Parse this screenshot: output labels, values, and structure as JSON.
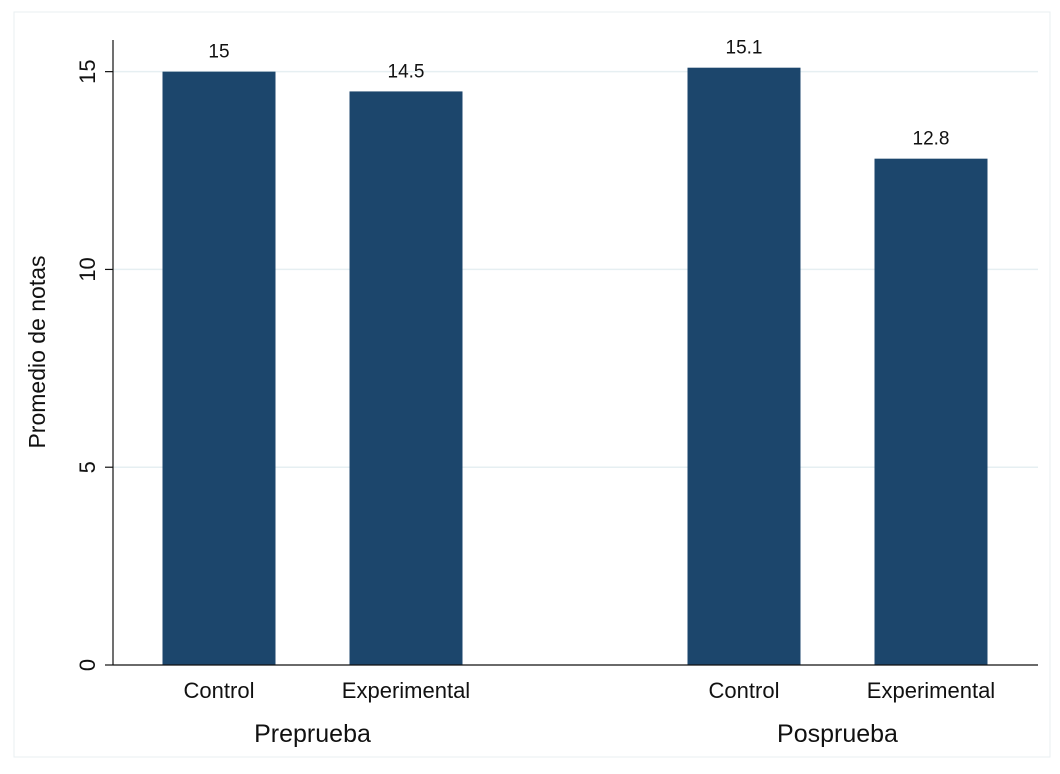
{
  "chart_data": {
    "type": "bar",
    "groups": [
      {
        "label": "Preprueba",
        "categories": [
          "Control",
          "Experimental"
        ],
        "values": [
          15,
          14.5
        ],
        "value_labels": [
          "15",
          "14.5"
        ]
      },
      {
        "label": "Posprueba",
        "categories": [
          "Control",
          "Experimental"
        ],
        "values": [
          15.1,
          12.8
        ],
        "value_labels": [
          "15.1",
          "12.8"
        ]
      }
    ],
    "title": "",
    "xlabel": "",
    "ylabel": "Promedio de notas",
    "ylim": [
      0,
      15.8
    ],
    "yticks": [
      0,
      5,
      10,
      15
    ],
    "ytick_labels": [
      "0",
      "5",
      "10",
      "15"
    ],
    "grid": true,
    "bar_color": "#1c466c",
    "grid_color": "#e6eff2",
    "frame_color": "#e8eff2"
  }
}
